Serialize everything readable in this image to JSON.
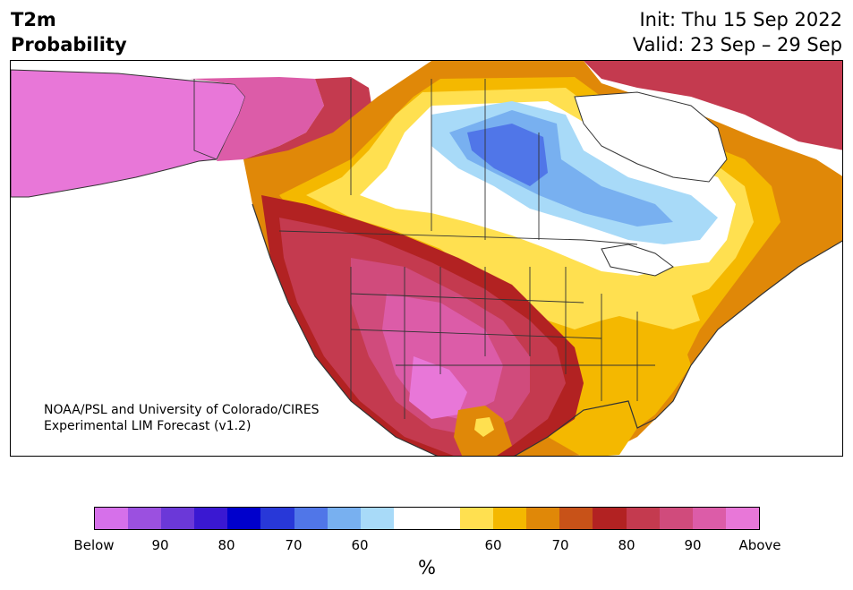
{
  "title": {
    "line1": "T2m",
    "line2": "Probability"
  },
  "init": {
    "label": "Init: Thu 15 Sep 2022"
  },
  "valid": {
    "label": "Valid: 23 Sep – 29 Sep"
  },
  "credit": {
    "line1": "NOAA/PSL and University of Colorado/CIRES",
    "line2": "Experimental LIM Forecast (v1.2)"
  },
  "colors": {
    "below_90_plus": "#d670ea",
    "below_85": "#9b50e0",
    "below_80": "#6b38d8",
    "below_75": "#3a18d2",
    "below_70": "#0000cc",
    "below_65": "#2838d8",
    "below_60": "#5076e8",
    "below_55": "#78b0f0",
    "below_50": "#a8daf8",
    "neutral": "#ffffff",
    "above_50": "#ffe050",
    "above_55": "#f4b800",
    "above_60": "#e08808",
    "above_65": "#c85218",
    "above_70": "#b22222",
    "above_75": "#c43a4f",
    "above_80": "#d04b7c",
    "above_85": "#dc5ca8",
    "above_90_plus": "#e877d8",
    "land_outline": "#333333"
  },
  "colorbar": {
    "swatches": [
      "#d670ea",
      "#9b50e0",
      "#6b38d8",
      "#3a18d2",
      "#0000cc",
      "#2838d8",
      "#5076e8",
      "#78b0f0",
      "#a8daf8",
      "#ffffff",
      "#ffffff",
      "#ffe050",
      "#f4b800",
      "#e08808",
      "#c85218",
      "#b22222",
      "#c43a4f",
      "#d04b7c",
      "#dc5ca8",
      "#e877d8"
    ],
    "ticks": [
      "Below",
      "90",
      "80",
      "70",
      "60",
      "60",
      "70",
      "80",
      "90",
      "Above"
    ],
    "unit": "%"
  }
}
